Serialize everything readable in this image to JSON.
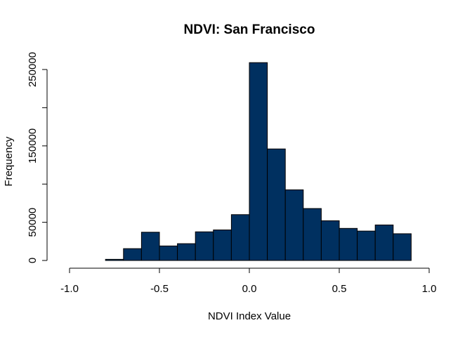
{
  "chart_data": {
    "type": "bar",
    "title": "NDVI: San Francisco",
    "xlabel": "NDVI Index Value",
    "ylabel": "Frequency",
    "xlim": [
      -1.0,
      1.0
    ],
    "ylim": [
      0,
      250000
    ],
    "x_ticks": [
      -1.0,
      -0.5,
      0.0,
      0.5,
      1.0
    ],
    "x_tick_labels": [
      "-1.0",
      "-0.5",
      "0.0",
      "0.5",
      "1.0"
    ],
    "y_ticks": [
      0,
      50000,
      100000,
      150000,
      200000,
      250000
    ],
    "y_tick_labels": [
      "0",
      "50000",
      "",
      "150000",
      "",
      "250000"
    ],
    "bar_color": "#003060",
    "bin_width": 0.1,
    "bins": [
      {
        "start": -1.0,
        "end": -0.9,
        "value": 0
      },
      {
        "start": -0.9,
        "end": -0.8,
        "value": 0
      },
      {
        "start": -0.8,
        "end": -0.7,
        "value": 1500
      },
      {
        "start": -0.7,
        "end": -0.6,
        "value": 15500
      },
      {
        "start": -0.6,
        "end": -0.5,
        "value": 37000
      },
      {
        "start": -0.5,
        "end": -0.4,
        "value": 19000
      },
      {
        "start": -0.4,
        "end": -0.3,
        "value": 22000
      },
      {
        "start": -0.3,
        "end": -0.2,
        "value": 37500
      },
      {
        "start": -0.2,
        "end": -0.1,
        "value": 40000
      },
      {
        "start": -0.1,
        "end": 0.0,
        "value": 60000
      },
      {
        "start": 0.0,
        "end": 0.1,
        "value": 259000
      },
      {
        "start": 0.1,
        "end": 0.2,
        "value": 146000
      },
      {
        "start": 0.2,
        "end": 0.3,
        "value": 92500
      },
      {
        "start": 0.3,
        "end": 0.4,
        "value": 68000
      },
      {
        "start": 0.4,
        "end": 0.5,
        "value": 52000
      },
      {
        "start": 0.5,
        "end": 0.6,
        "value": 42000
      },
      {
        "start": 0.6,
        "end": 0.7,
        "value": 38500
      },
      {
        "start": 0.7,
        "end": 0.8,
        "value": 46500
      },
      {
        "start": 0.8,
        "end": 0.9,
        "value": 35000
      },
      {
        "start": 0.9,
        "end": 1.0,
        "value": 0
      }
    ]
  }
}
